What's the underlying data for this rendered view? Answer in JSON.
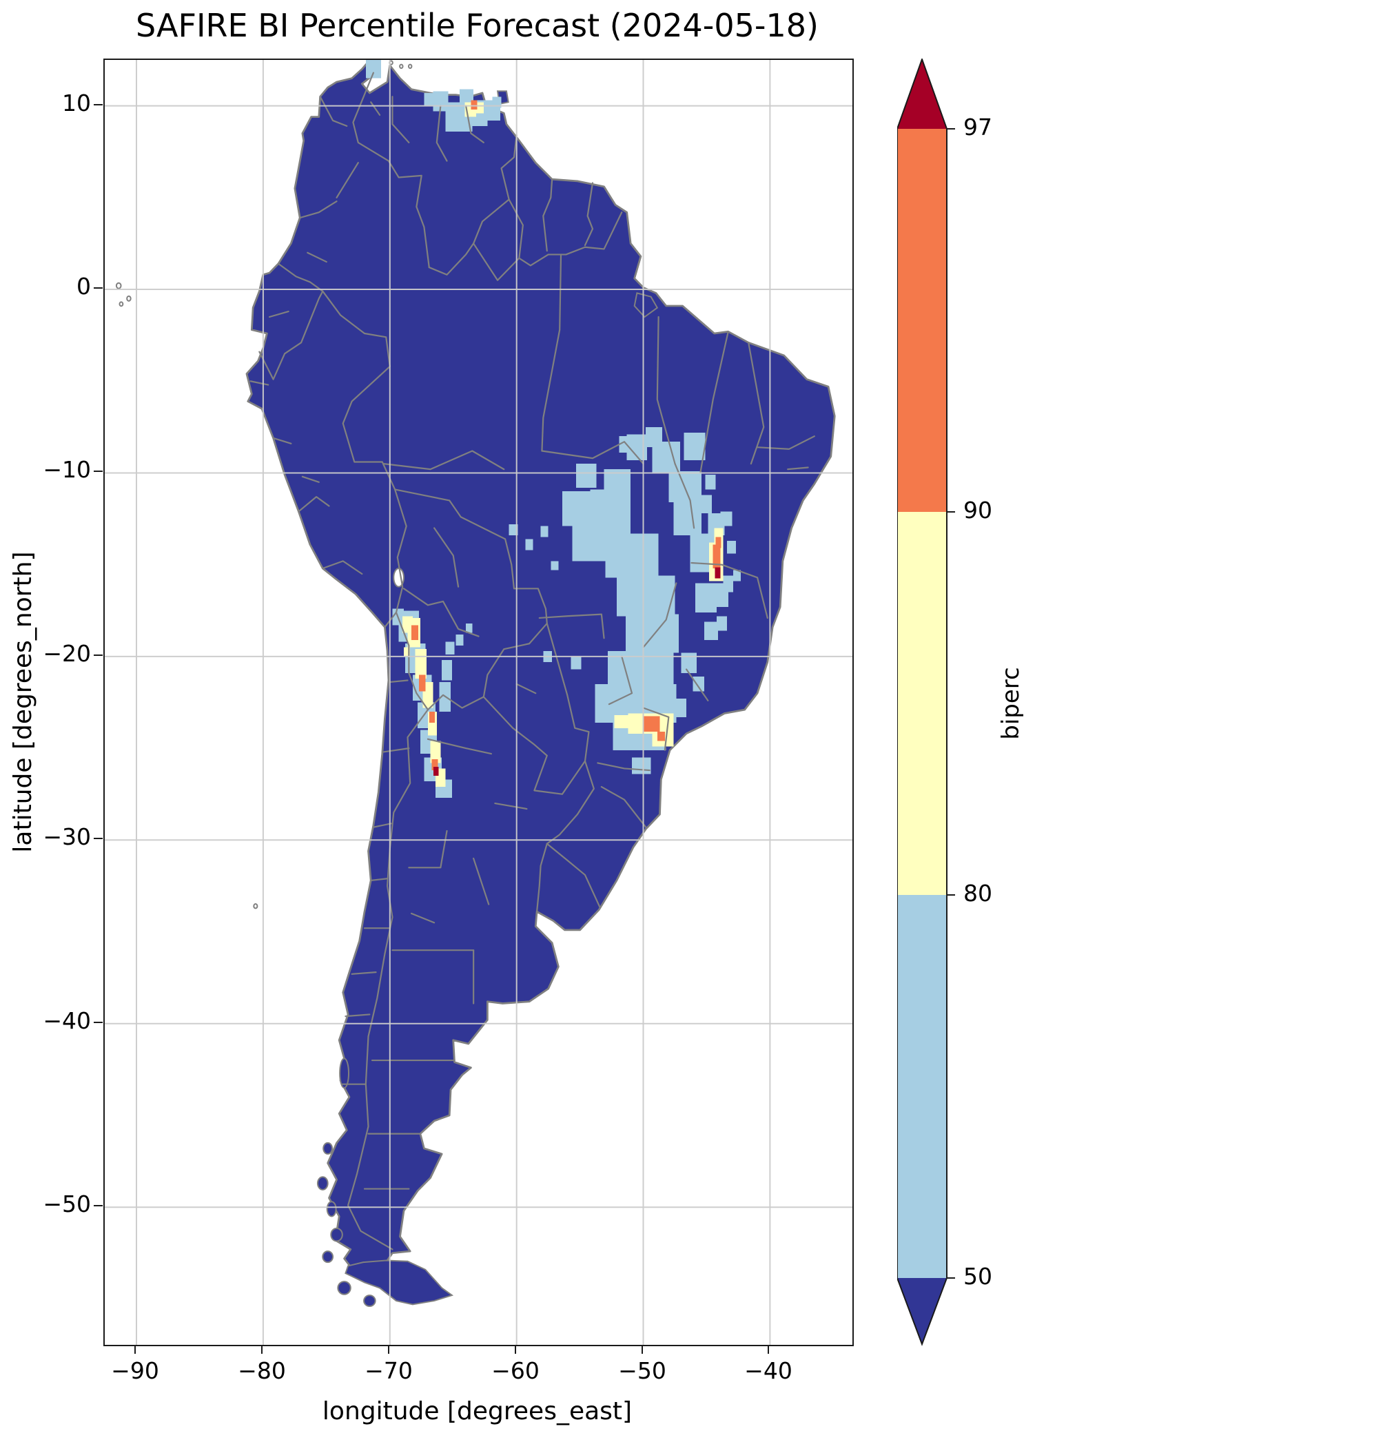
{
  "chart_data": {
    "type": "heatmap",
    "title": "SAFIRE BI Percentile Forecast (2024-05-18)",
    "xlabel": "longitude [degrees_east]",
    "ylabel": "latitude [degrees_north]",
    "xlim": [
      -92.5,
      -33.5
    ],
    "ylim": [
      -57.5,
      12.5
    ],
    "xticks": [
      -90,
      -80,
      -70,
      -60,
      -50,
      -40
    ],
    "yticks": [
      10,
      0,
      -10,
      -20,
      -30,
      -40,
      -50
    ],
    "grid": true,
    "colorbar": {
      "label": "biperc",
      "levels": [
        50,
        80,
        90,
        97
      ],
      "extend": "both"
    },
    "bins": {
      "base": "<50",
      "b": "50-80",
      "y": "80-90",
      "o": "90-97",
      "r": ">97"
    },
    "cells": {
      "b": [
        [
          -71.9,
          11.5,
          1.2,
          1.0
        ],
        [
          -66.6,
          9.7,
          1.2,
          1.1
        ],
        [
          -65.6,
          8.6,
          2.1,
          1.6
        ],
        [
          -63.9,
          8.9,
          1.6,
          1.4
        ],
        [
          -62.6,
          9.2,
          1.3,
          1.1
        ],
        [
          -64.5,
          10.1,
          1.1,
          0.8
        ],
        [
          -67.3,
          10.0,
          0.8,
          0.7
        ],
        [
          -61.9,
          9.9,
          0.7,
          0.6
        ],
        [
          -55.3,
          -10.8,
          1.6,
          1.3
        ],
        [
          -56.4,
          -12.9,
          2.6,
          1.9
        ],
        [
          -55.6,
          -14.8,
          3.1,
          2.0
        ],
        [
          -54.2,
          -13.3,
          3.2,
          2.4
        ],
        [
          -53.0,
          -15.7,
          4.2,
          2.4
        ],
        [
          -52.1,
          -17.8,
          4.6,
          2.2
        ],
        [
          -51.4,
          -19.8,
          4.2,
          2.1
        ],
        [
          -52.8,
          -21.6,
          5.2,
          1.9
        ],
        [
          -53.8,
          -23.6,
          6.4,
          2.1
        ],
        [
          -52.4,
          -25.1,
          4.2,
          1.6
        ],
        [
          -51.3,
          -9.3,
          1.6,
          1.4
        ],
        [
          -53.1,
          -11.4,
          2.1,
          1.6
        ],
        [
          -49.3,
          -10.0,
          2.2,
          1.7
        ],
        [
          -48.0,
          -11.6,
          2.6,
          1.7
        ],
        [
          -46.8,
          -9.3,
          1.7,
          1.5
        ],
        [
          -47.6,
          -13.4,
          2.2,
          2.0
        ],
        [
          -46.3,
          -15.4,
          1.9,
          2.1
        ],
        [
          -45.9,
          -17.6,
          1.7,
          1.6
        ],
        [
          -44.9,
          -13.4,
          1.3,
          1.2
        ],
        [
          -45.7,
          -12.2,
          1.1,
          1.0
        ],
        [
          -43.9,
          -12.9,
          0.9,
          0.8
        ],
        [
          -44.6,
          -17.3,
          1.3,
          1.3
        ],
        [
          -43.7,
          -16.5,
          0.8,
          0.9
        ],
        [
          -45.2,
          -19.1,
          1.1,
          1.0
        ],
        [
          -47.0,
          -20.9,
          1.2,
          1.1
        ],
        [
          -46.1,
          -21.9,
          0.9,
          0.8
        ],
        [
          -49.8,
          -8.6,
          1.3,
          1.1
        ],
        [
          -51.9,
          -8.9,
          1.1,
          0.9
        ],
        [
          -45.1,
          -10.9,
          0.8,
          0.8
        ],
        [
          -44.2,
          -18.6,
          0.8,
          0.8
        ],
        [
          -43.4,
          -14.4,
          0.7,
          0.7
        ],
        [
          -42.9,
          -15.9,
          0.6,
          0.6
        ],
        [
          -58.1,
          -13.5,
          0.6,
          0.6
        ],
        [
          -59.3,
          -14.2,
          0.6,
          0.6
        ],
        [
          -60.6,
          -13.4,
          0.7,
          0.6
        ],
        [
          -57.3,
          -15.3,
          0.6,
          0.5
        ],
        [
          -57.9,
          -20.3,
          0.7,
          0.6
        ],
        [
          -55.7,
          -20.7,
          0.8,
          0.7
        ],
        [
          -47.9,
          -23.3,
          1.3,
          1.0
        ],
        [
          -50.9,
          -26.4,
          1.5,
          0.9
        ],
        [
          -69.3,
          -19.2,
          1.6,
          1.7
        ],
        [
          -68.8,
          -20.9,
          1.6,
          1.6
        ],
        [
          -68.2,
          -22.4,
          1.5,
          1.4
        ],
        [
          -67.8,
          -23.9,
          1.4,
          1.4
        ],
        [
          -67.6,
          -25.3,
          1.3,
          1.3
        ],
        [
          -67.3,
          -26.8,
          1.4,
          1.3
        ],
        [
          -66.4,
          -27.7,
          1.3,
          1.0
        ],
        [
          -66.1,
          -23.0,
          0.9,
          1.6
        ],
        [
          -65.9,
          -21.3,
          0.8,
          1.1
        ],
        [
          -69.8,
          -18.3,
          0.9,
          0.9
        ],
        [
          -65.6,
          -19.9,
          0.7,
          0.7
        ],
        [
          -64.8,
          -19.4,
          0.6,
          0.6
        ],
        [
          -64.0,
          -18.7,
          0.5,
          0.5
        ]
      ],
      "y": [
        [
          -64.1,
          9.4,
          0.9,
          0.8
        ],
        [
          -63.2,
          9.6,
          0.6,
          0.6
        ],
        [
          -68.6,
          -19.5,
          1.0,
          1.6
        ],
        [
          -68.0,
          -21.2,
          0.9,
          1.6
        ],
        [
          -67.4,
          -22.8,
          0.8,
          1.4
        ],
        [
          -67.0,
          -24.3,
          0.7,
          1.3
        ],
        [
          -66.8,
          -25.8,
          0.8,
          1.2
        ],
        [
          -66.4,
          -27.1,
          0.8,
          1.0
        ],
        [
          -69.0,
          -18.7,
          0.8,
          0.9
        ],
        [
          -68.9,
          -20.0,
          0.5,
          0.5
        ],
        [
          -44.8,
          -15.9,
          1.1,
          2.1
        ],
        [
          -44.4,
          -13.9,
          0.7,
          0.9
        ],
        [
          -51.2,
          -24.2,
          3.6,
          1.1
        ],
        [
          -49.3,
          -24.9,
          1.7,
          0.7
        ],
        [
          -52.3,
          -23.9,
          1.1,
          0.7
        ]
      ],
      "o": [
        [
          -63.6,
          9.8,
          0.5,
          0.5
        ],
        [
          -68.3,
          -19.1,
          0.55,
          0.8
        ],
        [
          -67.7,
          -21.9,
          0.5,
          0.9
        ],
        [
          -66.9,
          -23.6,
          0.45,
          0.6
        ],
        [
          -66.7,
          -26.2,
          0.5,
          0.6
        ],
        [
          -44.5,
          -15.2,
          0.6,
          1.3
        ],
        [
          -44.3,
          -14.1,
          0.45,
          0.6
        ],
        [
          -50.0,
          -24.1,
          1.3,
          0.85
        ],
        [
          -48.9,
          -24.6,
          0.6,
          0.5
        ]
      ],
      "r": [
        [
          -44.35,
          -15.75,
          0.45,
          0.6
        ],
        [
          -66.55,
          -26.5,
          0.4,
          0.5
        ]
      ]
    }
  },
  "axes": {
    "xtick_labels": [
      "−90",
      "−80",
      "−70",
      "−60",
      "−50",
      "−40"
    ],
    "ytick_labels": [
      "10",
      "0",
      "−10",
      "−20",
      "−30",
      "−40",
      "−50"
    ]
  },
  "colorbar": {
    "tick_labels": [
      "97",
      "90",
      "80",
      "50"
    ]
  },
  "colors": {
    "below50": "#313695",
    "band50to80": "#a6cee3",
    "band80to90": "#ffffbf",
    "band90to97": "#f4794b",
    "above97": "#a50026",
    "boundary": "#808080",
    "grid": "#cccccc"
  }
}
